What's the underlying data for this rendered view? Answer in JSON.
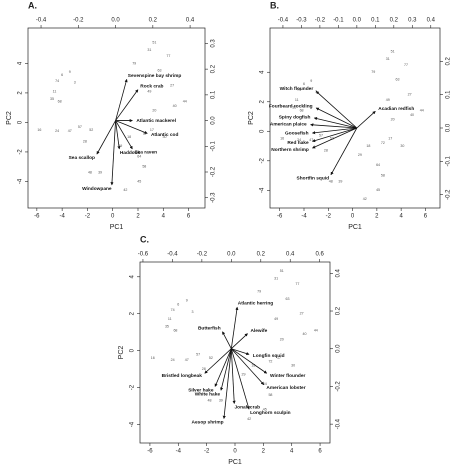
{
  "chart_data": [
    {
      "type": "biplot",
      "title": "A.",
      "xlabel": "PC1",
      "ylabel": "PC2",
      "xlim": [
        -6.7,
        7.3
      ],
      "ylim": [
        -5.8,
        6.4
      ],
      "xticks": [
        -6,
        -4,
        -2,
        0,
        2,
        4,
        6
      ],
      "yticks": [
        -4,
        -2,
        0,
        2,
        4
      ],
      "x2lim": [
        -0.47,
        0.48
      ],
      "y2lim": [
        -0.34,
        0.36
      ],
      "x2ticks": [
        -0.4,
        -0.2,
        {
          "value": 0,
          "label": "0.0"
        },
        0.2,
        0.4
      ],
      "y2ticks": [
        -0.3,
        -0.2,
        -0.1,
        {
          "value": 0,
          "label": "0.0"
        },
        0.1,
        0.2,
        0.3
      ],
      "points": {
        "x": [
          3.3,
          4.4,
          2.9,
          1.7,
          -3.4,
          -4.0,
          -3.0,
          -4.4,
          -4.6,
          -4.8,
          -4.2,
          -5.8,
          -4.4,
          -3.4,
          -2.6,
          -1.7,
          -2.2,
          2.9,
          4.9,
          5.7,
          2.5,
          3.1,
          1.3,
          0.6,
          2.1,
          2.5,
          -1.0,
          -1.8,
          2.1,
          1.0,
          4.1,
          3.3,
          3.7,
          4.7
        ],
        "y": [
          5.4,
          4.5,
          4.9,
          4.0,
          3.4,
          3.2,
          2.7,
          2.8,
          2.1,
          1.6,
          1.4,
          -0.5,
          -0.6,
          -0.6,
          -0.3,
          -0.5,
          -1.3,
          2.1,
          1.1,
          1.4,
          -0.8,
          -0.5,
          -1.0,
          -1.6,
          -2.3,
          -3.0,
          -3.4,
          -3.4,
          -4.0,
          -4.6,
          -1.0,
          0.8,
          3.5,
          2.5
        ],
        "labels": [
          51,
          77,
          31,
          79,
          9,
          6,
          3,
          74,
          11,
          35,
          68,
          16,
          24,
          47,
          57,
          52,
          28,
          49,
          40,
          44,
          72,
          17,
          18,
          29,
          64,
          58,
          39,
          48,
          45,
          42,
          30,
          20,
          63,
          27
        ]
      },
      "loadings": {
        "names": [
          "Sevenspine bay shrimp",
          "Rock crab",
          "Atlantic mackerel",
          "Atlantic cod",
          "Sea raven",
          "Haddock",
          "Sea scallop",
          "Windowpane"
        ],
        "x": [
          0.06,
          0.12,
          0.09,
          0.17,
          0.09,
          0.02,
          -0.1,
          -0.02
        ],
        "y": [
          0.16,
          0.12,
          0.0,
          -0.05,
          -0.11,
          -0.11,
          -0.13,
          -0.25
        ]
      }
    },
    {
      "type": "biplot",
      "title": "B.",
      "xlabel": "PC1",
      "ylabel": "PC2",
      "xlim": [
        -6.8,
        7.2
      ],
      "ylim": [
        -5.2,
        7.0
      ],
      "xticks": [
        -6,
        -4,
        -2,
        0,
        2,
        4,
        6
      ],
      "yticks": [
        -4,
        -2,
        0,
        2,
        4
      ],
      "x2lim": [
        -0.47,
        0.45
      ],
      "y2lim": [
        -0.24,
        0.3
      ],
      "x2ticks": [
        -0.4,
        -0.3,
        -0.2,
        -0.1,
        {
          "value": 0,
          "label": "0.0"
        },
        0.1,
        0.2,
        0.3,
        0.4
      ],
      "y2ticks": [
        -0.2,
        -0.1,
        {
          "value": 0,
          "label": "0.0"
        },
        0.1,
        0.2
      ],
      "points": {
        "x": [
          3.3,
          4.4,
          2.9,
          1.7,
          -3.4,
          -4.0,
          -3.0,
          -4.4,
          -4.6,
          -4.8,
          -4.2,
          -5.8,
          -4.4,
          -3.4,
          -2.6,
          -1.7,
          -2.2,
          2.9,
          4.9,
          5.7,
          2.5,
          3.1,
          1.3,
          0.6,
          2.1,
          2.5,
          -1.0,
          -1.8,
          2.1,
          1.0,
          4.1,
          3.3,
          3.7,
          4.7
        ],
        "y": [
          5.4,
          4.5,
          4.9,
          4.0,
          3.4,
          3.2,
          2.7,
          2.8,
          2.1,
          1.6,
          1.4,
          -0.5,
          -0.6,
          -0.6,
          -0.3,
          -0.5,
          -1.3,
          2.1,
          1.1,
          1.4,
          -0.8,
          -0.5,
          -1.0,
          -1.6,
          -2.3,
          -3.0,
          -3.4,
          -3.4,
          -4.0,
          -4.6,
          -1.0,
          0.8,
          3.5,
          2.5
        ],
        "labels": [
          51,
          77,
          31,
          79,
          9,
          6,
          3,
          74,
          11,
          35,
          68,
          16,
          24,
          47,
          57,
          52,
          28,
          49,
          40,
          44,
          72,
          17,
          18,
          29,
          64,
          58,
          39,
          48,
          45,
          42,
          30,
          20,
          63,
          27
        ]
      },
      "loadings": {
        "names": [
          "Witch flounder",
          "Fourbeard rockling",
          "Spiny dogfish",
          "American plaice",
          "Goosefish",
          "Red hake",
          "Northern shrimp",
          "Shortfin squid",
          "Acadian redfish"
        ],
        "x": [
          -0.22,
          -0.22,
          -0.23,
          -0.25,
          -0.24,
          -0.24,
          -0.24,
          -0.14,
          0.1
        ],
        "y": [
          0.11,
          0.06,
          0.03,
          0.01,
          -0.015,
          -0.04,
          -0.06,
          -0.14,
          0.05
        ]
      }
    },
    {
      "type": "biplot",
      "title": "C.",
      "xlabel": "PC1",
      "ylabel": "PC2",
      "xlim": [
        -6.7,
        6.7
      ],
      "ylim": [
        -5.0,
        4.8
      ],
      "xticks": [
        -6,
        -4,
        -2,
        0,
        2,
        4,
        6
      ],
      "yticks": [
        -4,
        -2,
        0,
        2,
        4
      ],
      "x2lim": [
        -0.62,
        0.67
      ],
      "y2lim": [
        -0.5,
        0.46
      ],
      "x2ticks": [
        -0.6,
        -0.4,
        -0.2,
        {
          "value": 0,
          "label": "0.0"
        },
        0.2,
        0.4,
        0.6
      ],
      "y2ticks": [
        -0.4,
        -0.2,
        {
          "value": 0,
          "label": "0.0"
        },
        0.2,
        0.4
      ],
      "points": {
        "x": [
          3.3,
          4.4,
          2.9,
          1.7,
          -3.4,
          -4.0,
          -3.0,
          -4.4,
          -4.6,
          -4.8,
          -4.2,
          -5.8,
          -4.4,
          -3.4,
          -2.6,
          -1.7,
          -2.2,
          2.9,
          4.9,
          5.7,
          2.5,
          3.1,
          1.3,
          0.6,
          2.1,
          2.5,
          -1.0,
          -1.8,
          2.1,
          1.0,
          4.1,
          3.3,
          3.7,
          4.7
        ],
        "y": [
          4.3,
          3.6,
          3.9,
          3.2,
          2.7,
          2.5,
          2.1,
          2.2,
          1.7,
          1.3,
          1.1,
          -0.4,
          -0.5,
          -0.5,
          -0.2,
          -0.4,
          -1.0,
          1.7,
          0.9,
          1.1,
          -0.6,
          -0.4,
          -0.8,
          -1.3,
          -1.8,
          -2.4,
          -2.7,
          -2.7,
          -3.2,
          -3.7,
          -0.8,
          0.6,
          2.8,
          2.0
        ],
        "labels": [
          51,
          77,
          31,
          79,
          9,
          6,
          3,
          74,
          11,
          35,
          68,
          16,
          24,
          47,
          57,
          52,
          28,
          49,
          40,
          44,
          72,
          17,
          18,
          29,
          64,
          58,
          39,
          48,
          45,
          42,
          30,
          20,
          63,
          27
        ]
      },
      "loadings": {
        "names": [
          "Atlantic herring",
          "Butterfish",
          "Alewife",
          "Longfin squid",
          "Winter flounder",
          "American lobster",
          "Longhorn sculpin",
          "Aesop shrimp",
          "Jonah crab",
          "White hake",
          "Silver hake",
          "Bristled longbeak"
        ],
        "x": [
          0.04,
          -0.06,
          0.11,
          0.12,
          0.24,
          0.22,
          0.12,
          -0.05,
          0.02,
          -0.07,
          -0.11,
          -0.18
        ],
        "y": [
          0.22,
          0.09,
          0.08,
          -0.03,
          -0.13,
          -0.19,
          -0.32,
          -0.37,
          -0.29,
          -0.22,
          -0.2,
          -0.13
        ]
      }
    }
  ]
}
